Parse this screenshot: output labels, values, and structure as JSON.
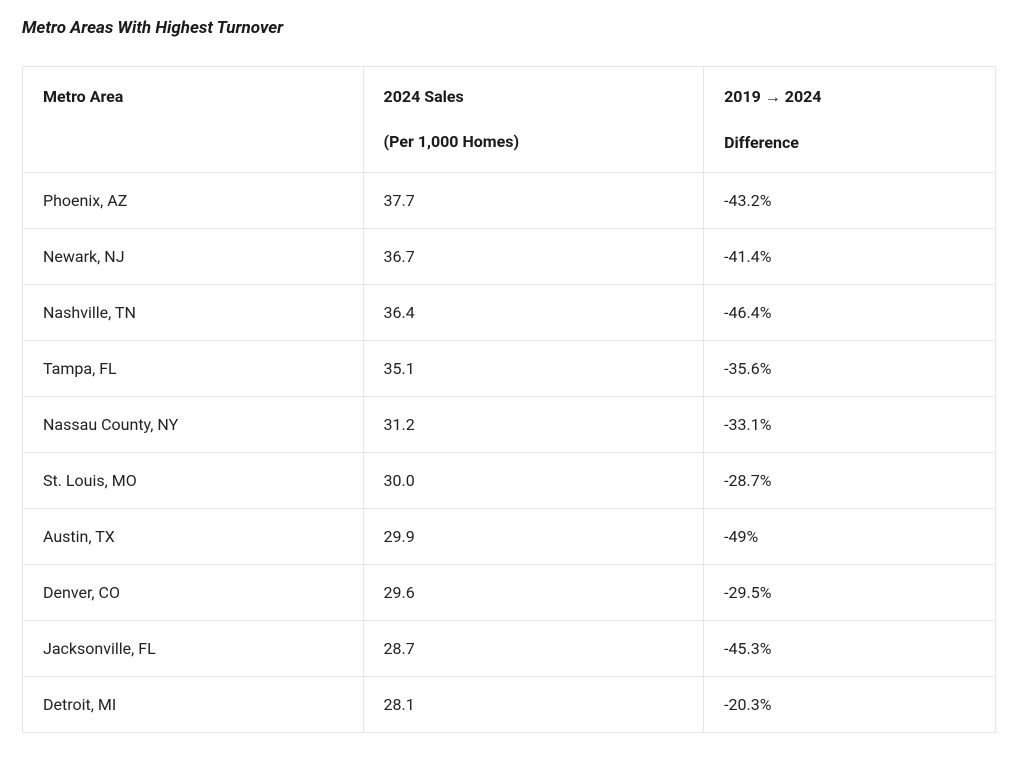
{
  "title": "Metro Areas With Highest Turnover",
  "table": {
    "columns": [
      {
        "header": "Metro Area",
        "subheader": ""
      },
      {
        "header": "2024 Sales",
        "subheader": "(Per 1,000 Homes)"
      },
      {
        "header": "2019 → 2024",
        "subheader": "Difference"
      }
    ],
    "rows": [
      {
        "area": "Phoenix, AZ",
        "sales": "37.7",
        "diff": "-43.2%"
      },
      {
        "area": "Newark, NJ",
        "sales": "36.7",
        "diff": "-41.4%"
      },
      {
        "area": "Nashville, TN",
        "sales": "36.4",
        "diff": "-46.4%"
      },
      {
        "area": "Tampa, FL",
        "sales": "35.1",
        "diff": "-35.6%"
      },
      {
        "area": "Nassau County, NY",
        "sales": "31.2",
        "diff": "-33.1%"
      },
      {
        "area": "St. Louis, MO",
        "sales": "30.0",
        "diff": "-28.7%"
      },
      {
        "area": "Austin, TX",
        "sales": "29.9",
        "diff": "-49%"
      },
      {
        "area": "Denver, CO",
        "sales": "29.6",
        "diff": "-29.5%"
      },
      {
        "area": "Jacksonville, FL",
        "sales": "28.7",
        "diff": "-45.3%"
      },
      {
        "area": "Detroit, MI",
        "sales": "28.1",
        "diff": "-20.3%"
      }
    ],
    "styling": {
      "border_color": "#e6e6e6",
      "text_color": "#1a1a1a",
      "background_color": "#ffffff",
      "header_fontsize": 16,
      "body_fontsize": 16,
      "title_fontsize": 17,
      "title_style": "italic bold",
      "column_widths_pct": [
        35,
        35,
        30
      ]
    }
  }
}
